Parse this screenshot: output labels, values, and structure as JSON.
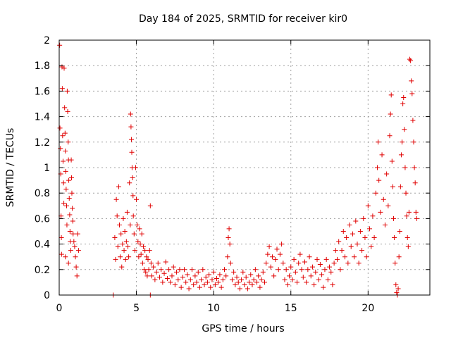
{
  "chart_data": {
    "type": "scatter",
    "title": "Day 184 of 2025, SRMTID for receiver kir0",
    "xlabel": "GPS time / hours",
    "ylabel": "SRMTID / TECUs",
    "xlim": [
      0,
      24
    ],
    "ylim": [
      0,
      2
    ],
    "xticks": [
      0,
      5,
      10,
      15,
      20
    ],
    "xtick_labels": [
      "0",
      "5",
      "10",
      "15",
      "20"
    ],
    "yticks": [
      0,
      0.2,
      0.4,
      0.6,
      0.8,
      1.0,
      1.2,
      1.4,
      1.6,
      1.8,
      2.0
    ],
    "ytick_labels": [
      "0",
      "0.2",
      "0.4",
      "0.6",
      "0.8",
      "1",
      "1.2",
      "1.4",
      "1.6",
      "1.8",
      "2"
    ],
    "grid": true,
    "marker": "+",
    "marker_color": "#e00000",
    "series": [
      {
        "name": "SRMTID",
        "points": [
          [
            0.03,
            1.96
          ],
          [
            0.05,
            1.31
          ],
          [
            0.08,
            1.15
          ],
          [
            0.1,
            0.95
          ],
          [
            0.12,
            0.62
          ],
          [
            0.14,
            0.45
          ],
          [
            0.18,
            1.79
          ],
          [
            0.2,
            1.62
          ],
          [
            0.22,
            1.25
          ],
          [
            0.25,
            1.05
          ],
          [
            0.28,
            0.88
          ],
          [
            0.3,
            0.72
          ],
          [
            0.32,
            1.78
          ],
          [
            0.35,
            1.47
          ],
          [
            0.38,
            1.27
          ],
          [
            0.4,
            1.13
          ],
          [
            0.42,
            0.97
          ],
          [
            0.45,
            0.83
          ],
          [
            0.48,
            0.7
          ],
          [
            0.5,
            0.55
          ],
          [
            0.52,
            1.6
          ],
          [
            0.55,
            1.44
          ],
          [
            0.58,
            1.2
          ],
          [
            0.6,
            1.06
          ],
          [
            0.62,
            0.9
          ],
          [
            0.65,
            0.76
          ],
          [
            0.68,
            0.63
          ],
          [
            0.7,
            0.5
          ],
          [
            0.72,
            0.42
          ],
          [
            0.75,
            0.35
          ],
          [
            0.78,
            1.06
          ],
          [
            0.8,
            0.92
          ],
          [
            0.82,
            0.8
          ],
          [
            0.85,
            0.68
          ],
          [
            0.88,
            0.58
          ],
          [
            0.9,
            0.48
          ],
          [
            0.95,
            0.42
          ],
          [
            1.0,
            0.38
          ],
          [
            1.05,
            0.3
          ],
          [
            1.1,
            0.22
          ],
          [
            1.15,
            0.15
          ],
          [
            1.2,
            0.48
          ],
          [
            1.25,
            0.35
          ],
          [
            0.15,
            0.32
          ],
          [
            0.4,
            0.3
          ],
          [
            0.6,
            0.25
          ],
          [
            3.5,
            0.0
          ],
          [
            5.9,
            0.0
          ],
          [
            3.6,
            0.45
          ],
          [
            3.65,
            0.28
          ],
          [
            3.7,
            0.75
          ],
          [
            3.75,
            0.62
          ],
          [
            3.8,
            0.38
          ],
          [
            3.85,
            0.85
          ],
          [
            3.9,
            0.55
          ],
          [
            3.95,
            0.3
          ],
          [
            4.0,
            0.48
          ],
          [
            4.05,
            0.22
          ],
          [
            4.1,
            0.4
          ],
          [
            4.15,
            0.6
          ],
          [
            4.2,
            0.35
          ],
          [
            4.25,
            0.5
          ],
          [
            4.3,
            0.28
          ],
          [
            4.35,
            0.42
          ],
          [
            4.4,
            0.65
          ],
          [
            4.45,
            0.38
          ],
          [
            4.5,
            0.3
          ],
          [
            4.55,
            0.88
          ],
          [
            4.6,
            0.55
          ],
          [
            4.62,
            1.42
          ],
          [
            4.65,
            1.32
          ],
          [
            4.68,
            1.22
          ],
          [
            4.7,
            1.12
          ],
          [
            4.72,
            1.0
          ],
          [
            4.75,
            0.92
          ],
          [
            4.78,
            0.78
          ],
          [
            4.8,
            0.62
          ],
          [
            4.85,
            0.48
          ],
          [
            4.9,
            0.35
          ],
          [
            4.95,
            1.0
          ],
          [
            5.0,
            0.75
          ],
          [
            5.05,
            0.55
          ],
          [
            5.1,
            0.42
          ],
          [
            5.15,
            0.3
          ],
          [
            5.2,
            0.52
          ],
          [
            5.25,
            0.4
          ],
          [
            5.3,
            0.32
          ],
          [
            5.35,
            0.48
          ],
          [
            5.4,
            0.25
          ],
          [
            5.45,
            0.38
          ],
          [
            5.5,
            0.2
          ],
          [
            5.55,
            0.35
          ],
          [
            5.6,
            0.18
          ],
          [
            5.65,
            0.3
          ],
          [
            5.7,
            0.15
          ],
          [
            5.75,
            0.28
          ],
          [
            5.8,
            0.2
          ],
          [
            5.85,
            0.35
          ],
          [
            5.9,
            0.7
          ],
          [
            5.95,
            0.25
          ],
          [
            6.0,
            0.15
          ],
          [
            6.1,
            0.22
          ],
          [
            6.2,
            0.12
          ],
          [
            6.3,
            0.18
          ],
          [
            6.4,
            0.25
          ],
          [
            6.5,
            0.14
          ],
          [
            6.6,
            0.2
          ],
          [
            6.7,
            0.1
          ],
          [
            6.8,
            0.17
          ],
          [
            6.9,
            0.26
          ],
          [
            7.0,
            0.13
          ],
          [
            7.1,
            0.2
          ],
          [
            7.2,
            0.1
          ],
          [
            7.3,
            0.15
          ],
          [
            7.4,
            0.22
          ],
          [
            7.5,
            0.08
          ],
          [
            7.6,
            0.18
          ],
          [
            7.7,
            0.12
          ],
          [
            7.8,
            0.2
          ],
          [
            7.9,
            0.06
          ],
          [
            8.0,
            0.14
          ],
          [
            8.1,
            0.2
          ],
          [
            8.2,
            0.1
          ],
          [
            8.3,
            0.16
          ],
          [
            8.4,
            0.05
          ],
          [
            8.5,
            0.12
          ],
          [
            8.6,
            0.2
          ],
          [
            8.7,
            0.08
          ],
          [
            8.8,
            0.15
          ],
          [
            8.9,
            0.1
          ],
          [
            9.0,
            0.18
          ],
          [
            9.1,
            0.06
          ],
          [
            9.2,
            0.12
          ],
          [
            9.3,
            0.2
          ],
          [
            9.4,
            0.08
          ],
          [
            9.5,
            0.14
          ],
          [
            9.6,
            0.1
          ],
          [
            9.7,
            0.16
          ],
          [
            9.8,
            0.06
          ],
          [
            9.9,
            0.12
          ],
          [
            10.0,
            0.18
          ],
          [
            10.1,
            0.08
          ],
          [
            10.2,
            0.13
          ],
          [
            10.3,
            0.1
          ],
          [
            10.4,
            0.16
          ],
          [
            10.5,
            0.06
          ],
          [
            10.6,
            0.12
          ],
          [
            10.7,
            0.2
          ],
          [
            10.8,
            0.15
          ],
          [
            10.9,
            0.3
          ],
          [
            10.95,
            0.45
          ],
          [
            11.0,
            0.52
          ],
          [
            11.05,
            0.4
          ],
          [
            11.1,
            0.25
          ],
          [
            11.2,
            0.12
          ],
          [
            11.3,
            0.18
          ],
          [
            11.4,
            0.08
          ],
          [
            11.5,
            0.14
          ],
          [
            11.6,
            0.1
          ],
          [
            11.7,
            0.05
          ],
          [
            11.8,
            0.12
          ],
          [
            11.9,
            0.18
          ],
          [
            12.0,
            0.08
          ],
          [
            12.1,
            0.14
          ],
          [
            12.2,
            0.05
          ],
          [
            12.3,
            0.1
          ],
          [
            12.4,
            0.16
          ],
          [
            12.5,
            0.08
          ],
          [
            12.6,
            0.12
          ],
          [
            12.7,
            0.2
          ],
          [
            12.8,
            0.1
          ],
          [
            12.9,
            0.15
          ],
          [
            13.0,
            0.06
          ],
          [
            13.1,
            0.12
          ],
          [
            13.2,
            0.18
          ],
          [
            13.3,
            0.1
          ],
          [
            13.4,
            0.25
          ],
          [
            13.5,
            0.32
          ],
          [
            13.6,
            0.38
          ],
          [
            13.7,
            0.22
          ],
          [
            13.8,
            0.3
          ],
          [
            13.9,
            0.15
          ],
          [
            14.0,
            0.28
          ],
          [
            14.1,
            0.36
          ],
          [
            14.2,
            0.2
          ],
          [
            14.3,
            0.32
          ],
          [
            14.4,
            0.4
          ],
          [
            14.5,
            0.25
          ],
          [
            14.6,
            0.12
          ],
          [
            14.7,
            0.2
          ],
          [
            14.8,
            0.08
          ],
          [
            14.9,
            0.15
          ],
          [
            15.0,
            0.22
          ],
          [
            15.1,
            0.12
          ],
          [
            15.2,
            0.28
          ],
          [
            15.3,
            0.18
          ],
          [
            15.4,
            0.1
          ],
          [
            15.5,
            0.25
          ],
          [
            15.6,
            0.32
          ],
          [
            15.7,
            0.2
          ],
          [
            15.8,
            0.14
          ],
          [
            15.9,
            0.26
          ],
          [
            16.0,
            0.1
          ],
          [
            16.1,
            0.2
          ],
          [
            16.2,
            0.3
          ],
          [
            16.3,
            0.15
          ],
          [
            16.4,
            0.22
          ],
          [
            16.5,
            0.08
          ],
          [
            16.6,
            0.18
          ],
          [
            16.7,
            0.28
          ],
          [
            16.8,
            0.12
          ],
          [
            16.9,
            0.24
          ],
          [
            17.0,
            0.16
          ],
          [
            17.1,
            0.06
          ],
          [
            17.2,
            0.2
          ],
          [
            17.3,
            0.28
          ],
          [
            17.4,
            0.12
          ],
          [
            17.5,
            0.22
          ],
          [
            17.6,
            0.18
          ],
          [
            17.7,
            0.08
          ],
          [
            17.8,
            0.25
          ],
          [
            17.9,
            0.35
          ],
          [
            18.0,
            0.28
          ],
          [
            18.1,
            0.42
          ],
          [
            18.2,
            0.2
          ],
          [
            18.3,
            0.35
          ],
          [
            18.4,
            0.5
          ],
          [
            18.5,
            0.3
          ],
          [
            18.6,
            0.45
          ],
          [
            18.7,
            0.25
          ],
          [
            18.8,
            0.55
          ],
          [
            18.9,
            0.38
          ],
          [
            19.0,
            0.48
          ],
          [
            19.1,
            0.3
          ],
          [
            19.2,
            0.58
          ],
          [
            19.3,
            0.4
          ],
          [
            19.4,
            0.25
          ],
          [
            19.5,
            0.5
          ],
          [
            19.6,
            0.35
          ],
          [
            19.7,
            0.6
          ],
          [
            19.8,
            0.45
          ],
          [
            19.9,
            0.3
          ],
          [
            20.0,
            0.7
          ],
          [
            20.1,
            0.52
          ],
          [
            20.2,
            0.38
          ],
          [
            20.3,
            0.62
          ],
          [
            20.4,
            0.45
          ],
          [
            20.5,
            0.8
          ],
          [
            20.6,
            1.0
          ],
          [
            20.65,
            1.2
          ],
          [
            20.7,
            0.9
          ],
          [
            20.8,
            0.65
          ],
          [
            20.9,
            1.1
          ],
          [
            21.0,
            0.75
          ],
          [
            21.1,
            0.55
          ],
          [
            21.2,
            0.95
          ],
          [
            21.3,
            0.7
          ],
          [
            21.4,
            1.25
          ],
          [
            21.45,
            1.42
          ],
          [
            21.5,
            1.57
          ],
          [
            21.55,
            1.05
          ],
          [
            21.6,
            0.85
          ],
          [
            21.65,
            0.6
          ],
          [
            21.7,
            0.45
          ],
          [
            21.75,
            0.25
          ],
          [
            21.8,
            0.08
          ],
          [
            21.85,
            0.02
          ],
          [
            21.9,
            0.0
          ],
          [
            21.95,
            0.05
          ],
          [
            22.0,
            0.3
          ],
          [
            22.05,
            0.5
          ],
          [
            22.1,
            0.85
          ],
          [
            22.15,
            1.1
          ],
          [
            22.2,
            1.2
          ],
          [
            22.25,
            1.5
          ],
          [
            22.3,
            1.55
          ],
          [
            22.35,
            1.3
          ],
          [
            22.4,
            1.0
          ],
          [
            22.45,
            0.8
          ],
          [
            22.5,
            0.62
          ],
          [
            22.55,
            0.45
          ],
          [
            22.6,
            0.38
          ],
          [
            22.65,
            0.65
          ],
          [
            22.7,
            1.85
          ],
          [
            22.75,
            1.84
          ],
          [
            22.8,
            1.68
          ],
          [
            22.85,
            1.58
          ],
          [
            22.9,
            1.37
          ],
          [
            22.95,
            1.2
          ],
          [
            23.0,
            1.0
          ],
          [
            23.05,
            0.88
          ],
          [
            23.1,
            0.65
          ],
          [
            23.15,
            0.6
          ]
        ]
      }
    ]
  }
}
